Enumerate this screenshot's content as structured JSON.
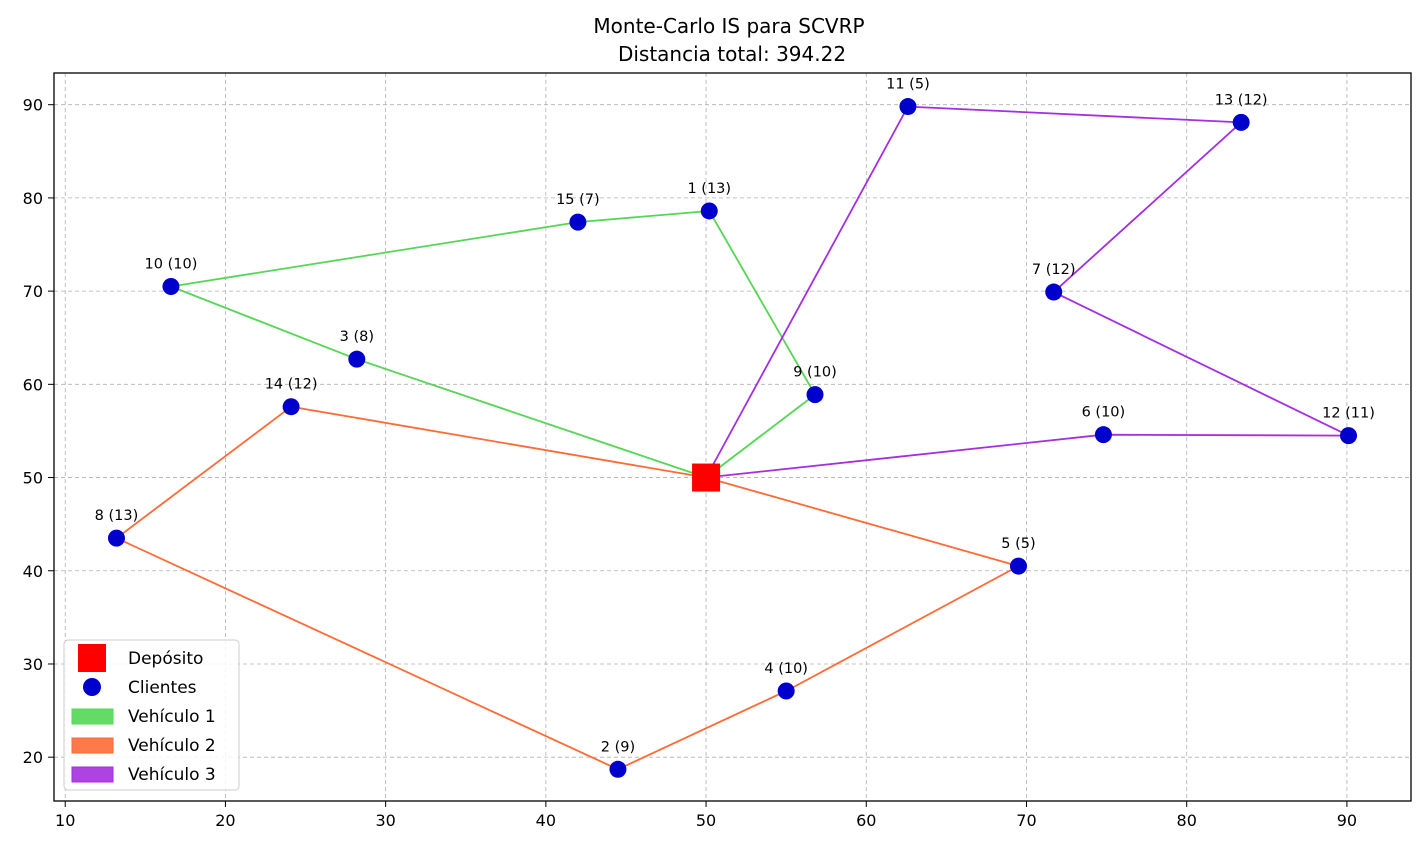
{
  "chart_data": {
    "type": "scatter",
    "title": "Monte-Carlo IS para SCVRP",
    "subtitle": "Distancia total: 394.22",
    "xlabel": "",
    "ylabel": "",
    "xlim": [
      9.3,
      94.0
    ],
    "ylim": [
      15.3,
      93.4
    ],
    "x_ticks": [
      10,
      20,
      30,
      40,
      50,
      60,
      70,
      80,
      90
    ],
    "y_ticks": [
      20,
      30,
      40,
      50,
      60,
      70,
      80,
      90
    ],
    "grid": true,
    "legend_position": "lower-left",
    "depot": {
      "x": 50.0,
      "y": 50.0,
      "label": "Depósito",
      "color": "#ff0000"
    },
    "clients": [
      {
        "id": 1,
        "x": 50.2,
        "y": 78.6,
        "demand": 13,
        "label": "1 (13)"
      },
      {
        "id": 2,
        "x": 44.5,
        "y": 18.7,
        "demand": 9,
        "label": "2 (9)"
      },
      {
        "id": 3,
        "x": 28.2,
        "y": 62.7,
        "demand": 8,
        "label": "3 (8)"
      },
      {
        "id": 4,
        "x": 55.0,
        "y": 27.1,
        "demand": 10,
        "label": "4 (10)"
      },
      {
        "id": 5,
        "x": 69.5,
        "y": 40.5,
        "demand": 5,
        "label": "5 (5)"
      },
      {
        "id": 6,
        "x": 74.8,
        "y": 54.6,
        "demand": 10,
        "label": "6 (10)"
      },
      {
        "id": 7,
        "x": 71.7,
        "y": 69.9,
        "demand": 12,
        "label": "7 (12)"
      },
      {
        "id": 8,
        "x": 13.2,
        "y": 43.5,
        "demand": 13,
        "label": "8 (13)"
      },
      {
        "id": 9,
        "x": 56.8,
        "y": 58.9,
        "demand": 10,
        "label": "9 (10)"
      },
      {
        "id": 10,
        "x": 16.6,
        "y": 70.5,
        "demand": 10,
        "label": "10 (10)"
      },
      {
        "id": 11,
        "x": 62.6,
        "y": 89.8,
        "demand": 5,
        "label": "11 (5)"
      },
      {
        "id": 12,
        "x": 90.1,
        "y": 54.5,
        "demand": 11,
        "label": "12 (11)"
      },
      {
        "id": 13,
        "x": 83.4,
        "y": 88.1,
        "demand": 12,
        "label": "13 (12)"
      },
      {
        "id": 14,
        "x": 24.1,
        "y": 57.6,
        "demand": 12,
        "label": "14 (12)"
      },
      {
        "id": 15,
        "x": 42.0,
        "y": 77.4,
        "demand": 7,
        "label": "15 (7)"
      }
    ],
    "client_color": "#0000cd",
    "client_legend_label": "Clientes",
    "series": [
      {
        "name": "Vehículo 1",
        "color": "#55d655",
        "route": [
          0,
          9,
          1,
          15,
          10,
          3,
          0
        ]
      },
      {
        "name": "Vehículo 2",
        "color": "#ff6a35",
        "route": [
          0,
          5,
          4,
          2,
          8,
          14,
          0
        ]
      },
      {
        "name": "Vehículo 3",
        "color": "#a52ee0",
        "route": [
          0,
          11,
          13,
          7,
          12,
          6,
          0
        ]
      }
    ]
  }
}
